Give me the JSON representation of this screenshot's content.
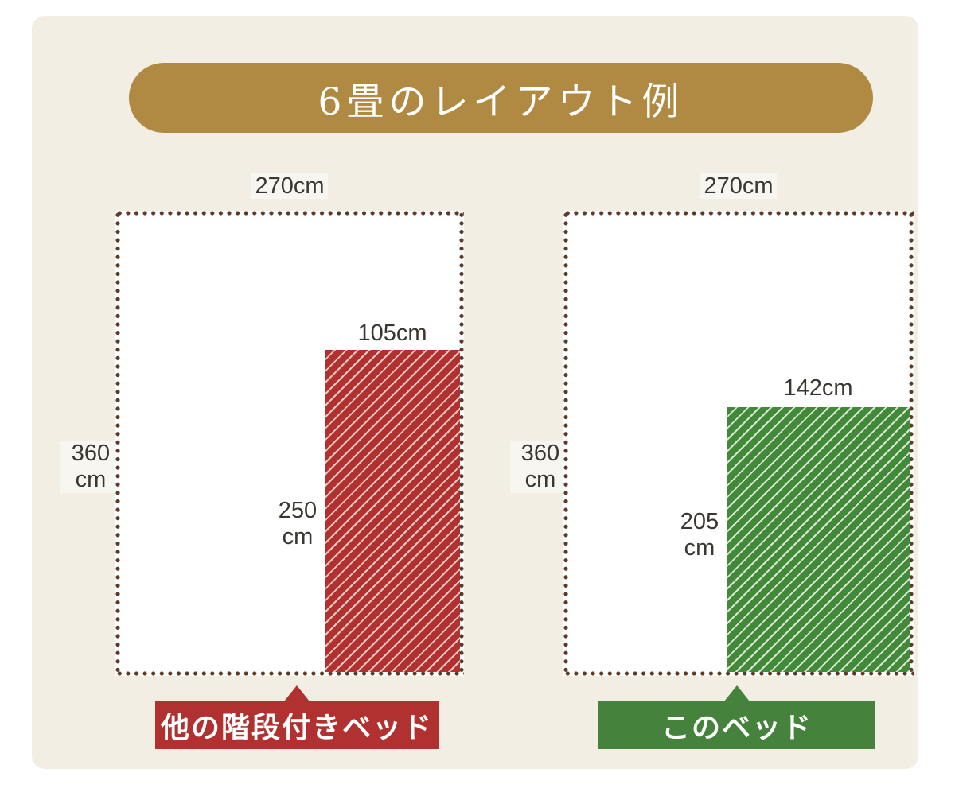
{
  "title": "6畳のレイアウト例",
  "colors": {
    "page_bg": "#ffffff",
    "card_bg": "#f2eee4",
    "banner_bg": "#b08a42",
    "banner_text": "#ffffff",
    "room_border_dots": "#5b3a27",
    "room_bg": "#ffffff",
    "dimension_text": "#3a3733",
    "other_bed_fill": "#b13130",
    "other_bed_stripe": "#eac9c4",
    "this_bed_fill": "#428a3a",
    "this_bed_stripe": "#d9e8d3",
    "caption_text": "#ffffff"
  },
  "rooms": [
    {
      "name": "other-stairs-bed-room",
      "room_width_label": "270cm",
      "room_depth_line1": "360",
      "room_depth_line2": "cm",
      "bed_width_label": "105cm",
      "bed_depth_line1": "250",
      "bed_depth_line2": "cm",
      "caption": "他の階段付きベッド"
    },
    {
      "name": "this-bed-room",
      "room_width_label": "270cm",
      "room_depth_line1": "360",
      "room_depth_line2": "cm",
      "bed_width_label": "142cm",
      "bed_depth_line1": "205",
      "bed_depth_line2": "cm",
      "caption": "このベッド"
    }
  ]
}
